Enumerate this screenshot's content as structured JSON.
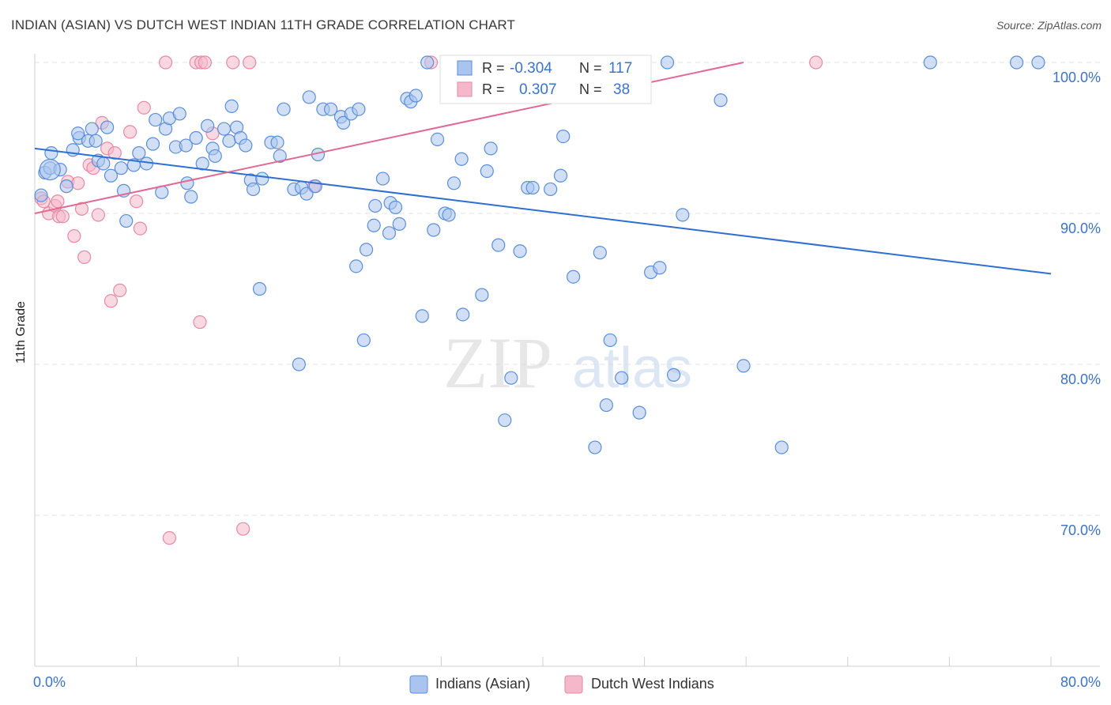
{
  "title": "INDIAN (ASIAN) VS DUTCH WEST INDIAN 11TH GRADE CORRELATION CHART",
  "source": "Source: ZipAtlas.com",
  "watermark": {
    "zip": "ZIP",
    "atlas": "atlas"
  },
  "colors": {
    "blue_fill": "#a9c4ef",
    "blue_stroke": "#5a8ed8",
    "blue_line": "#2f6fd1",
    "blue_text": "#3b73c9",
    "pink_fill": "#f5b8cb",
    "pink_stroke": "#e58aa7",
    "pink_line": "#e06a91",
    "grid": "#e3e3e3",
    "axis": "#cfcfcf"
  },
  "chart_data": {
    "type": "scatter",
    "xlabel": "",
    "ylabel": "11th Grade",
    "xlim": [
      0,
      80
    ],
    "ylim": [
      60,
      101.5
    ],
    "x_tick_labels": [
      "0.0%",
      "80.0%"
    ],
    "y_ticks": [
      70,
      80,
      90,
      100
    ],
    "y_tick_labels": [
      "70.0%",
      "80.0%",
      "90.0%",
      "100.0%"
    ],
    "grid": true,
    "legend_position": "bottom",
    "stats": [
      {
        "r_label": "R =",
        "r": "-0.304",
        "n_label": "N =",
        "n": "117"
      },
      {
        "r_label": "R =",
        "r": "0.307",
        "n_label": "N =",
        "n": "38"
      }
    ],
    "series": [
      {
        "name": "Indians (Asian)",
        "color": "#a9c4ef",
        "trend": {
          "x": [
            0,
            80
          ],
          "y": [
            94.3,
            86.0
          ]
        },
        "points": [
          [
            0.5,
            91.2
          ],
          [
            0.8,
            92.7
          ],
          [
            1.2,
            93.0
          ],
          [
            1.3,
            94.0
          ],
          [
            2.5,
            91.8
          ],
          [
            3.0,
            94.2
          ],
          [
            3.5,
            95.0
          ],
          [
            3.4,
            95.3
          ],
          [
            4.2,
            94.8
          ],
          [
            4.5,
            95.6
          ],
          [
            4.8,
            94.8
          ],
          [
            5.0,
            93.5
          ],
          [
            5.4,
            93.3
          ],
          [
            5.7,
            95.7
          ],
          [
            6.0,
            92.5
          ],
          [
            6.8,
            93.0
          ],
          [
            7.2,
            89.5
          ],
          [
            7.8,
            93.2
          ],
          [
            8.2,
            94.0
          ],
          [
            8.8,
            93.3
          ],
          [
            9.3,
            94.6
          ],
          [
            9.5,
            96.2
          ],
          [
            10.0,
            91.4
          ],
          [
            10.3,
            95.6
          ],
          [
            10.6,
            96.3
          ],
          [
            11.1,
            94.4
          ],
          [
            11.4,
            96.6
          ],
          [
            11.9,
            94.5
          ],
          [
            12.3,
            91.1
          ],
          [
            12.7,
            95.0
          ],
          [
            13.2,
            93.3
          ],
          [
            13.6,
            95.8
          ],
          [
            14.0,
            94.3
          ],
          [
            14.2,
            93.8
          ],
          [
            14.9,
            95.6
          ],
          [
            15.3,
            94.8
          ],
          [
            15.5,
            97.1
          ],
          [
            15.9,
            95.7
          ],
          [
            16.2,
            95.0
          ],
          [
            16.6,
            94.5
          ],
          [
            17.0,
            92.2
          ],
          [
            17.2,
            91.6
          ],
          [
            17.7,
            85.0
          ],
          [
            17.9,
            92.3
          ],
          [
            18.6,
            94.7
          ],
          [
            19.1,
            94.7
          ],
          [
            19.3,
            93.8
          ],
          [
            19.6,
            96.9
          ],
          [
            20.4,
            91.6
          ],
          [
            20.8,
            80.0
          ],
          [
            21.0,
            91.7
          ],
          [
            21.4,
            91.3
          ],
          [
            21.6,
            97.7
          ],
          [
            22.1,
            91.8
          ],
          [
            22.3,
            93.9
          ],
          [
            22.7,
            96.9
          ],
          [
            23.3,
            96.9
          ],
          [
            24.1,
            96.4
          ],
          [
            24.3,
            96.0
          ],
          [
            24.9,
            96.6
          ],
          [
            25.3,
            86.5
          ],
          [
            25.5,
            96.9
          ],
          [
            25.9,
            81.6
          ],
          [
            26.1,
            87.6
          ],
          [
            26.7,
            89.2
          ],
          [
            26.8,
            90.5
          ],
          [
            27.4,
            92.3
          ],
          [
            27.9,
            88.7
          ],
          [
            28.0,
            90.7
          ],
          [
            28.4,
            90.4
          ],
          [
            28.7,
            89.3
          ],
          [
            29.3,
            97.6
          ],
          [
            29.6,
            97.4
          ],
          [
            30.0,
            97.8
          ],
          [
            30.5,
            83.2
          ],
          [
            30.9,
            100.0
          ],
          [
            31.4,
            88.9
          ],
          [
            31.7,
            94.9
          ],
          [
            32.3,
            90.0
          ],
          [
            32.6,
            89.9
          ],
          [
            33.6,
            93.6
          ],
          [
            33.7,
            83.3
          ],
          [
            35.2,
            84.6
          ],
          [
            35.6,
            92.8
          ],
          [
            35.9,
            94.3
          ],
          [
            36.5,
            87.9
          ],
          [
            37.0,
            76.3
          ],
          [
            37.5,
            79.1
          ],
          [
            38.2,
            87.5
          ],
          [
            38.8,
            91.7
          ],
          [
            39.2,
            91.7
          ],
          [
            40.6,
            91.6
          ],
          [
            41.4,
            92.5
          ],
          [
            41.6,
            95.1
          ],
          [
            42.4,
            85.8
          ],
          [
            43.0,
            100.0
          ],
          [
            44.1,
            74.5
          ],
          [
            44.5,
            87.4
          ],
          [
            45.0,
            77.3
          ],
          [
            45.3,
            81.6
          ],
          [
            46.2,
            79.1
          ],
          [
            47.6,
            76.8
          ],
          [
            48.5,
            86.1
          ],
          [
            49.2,
            86.4
          ],
          [
            49.8,
            100.0
          ],
          [
            50.3,
            79.3
          ],
          [
            51.0,
            89.9
          ],
          [
            54.0,
            97.5
          ],
          [
            55.8,
            79.9
          ],
          [
            58.8,
            74.5
          ],
          [
            70.5,
            100.0
          ],
          [
            77.3,
            100.0
          ],
          [
            79.0,
            100.0
          ],
          [
            2.0,
            92.9
          ],
          [
            7.0,
            91.5
          ],
          [
            12.0,
            92.0
          ],
          [
            33.0,
            92.0
          ]
        ]
      },
      {
        "name": "Dutch West Indians",
        "color": "#f5b8cb",
        "trend": {
          "x": [
            0,
            55.8
          ],
          "y": [
            90.0,
            100.0
          ]
        },
        "points": [
          [
            0.5,
            91.0
          ],
          [
            0.7,
            90.8
          ],
          [
            1.1,
            90.0
          ],
          [
            1.6,
            90.5
          ],
          [
            1.8,
            90.8
          ],
          [
            1.9,
            89.8
          ],
          [
            2.2,
            89.8
          ],
          [
            2.6,
            92.1
          ],
          [
            3.1,
            88.5
          ],
          [
            3.4,
            92.0
          ],
          [
            3.7,
            90.3
          ],
          [
            3.9,
            87.1
          ],
          [
            4.3,
            93.2
          ],
          [
            4.6,
            93.0
          ],
          [
            5.0,
            89.9
          ],
          [
            5.3,
            96.0
          ],
          [
            5.7,
            94.3
          ],
          [
            6.0,
            84.2
          ],
          [
            6.3,
            94.0
          ],
          [
            6.7,
            84.9
          ],
          [
            7.5,
            95.4
          ],
          [
            8.0,
            90.8
          ],
          [
            8.3,
            89.0
          ],
          [
            8.6,
            97.0
          ],
          [
            10.3,
            100.0
          ],
          [
            10.6,
            68.5
          ],
          [
            12.7,
            100.0
          ],
          [
            13.1,
            100.0
          ],
          [
            13.4,
            100.0
          ],
          [
            13.0,
            82.8
          ],
          [
            14.0,
            95.3
          ],
          [
            15.6,
            100.0
          ],
          [
            16.4,
            69.1
          ],
          [
            16.9,
            100.0
          ],
          [
            22.0,
            91.8
          ],
          [
            31.2,
            100.0
          ],
          [
            36.6,
            100.0
          ],
          [
            61.5,
            100.0
          ]
        ]
      }
    ]
  }
}
